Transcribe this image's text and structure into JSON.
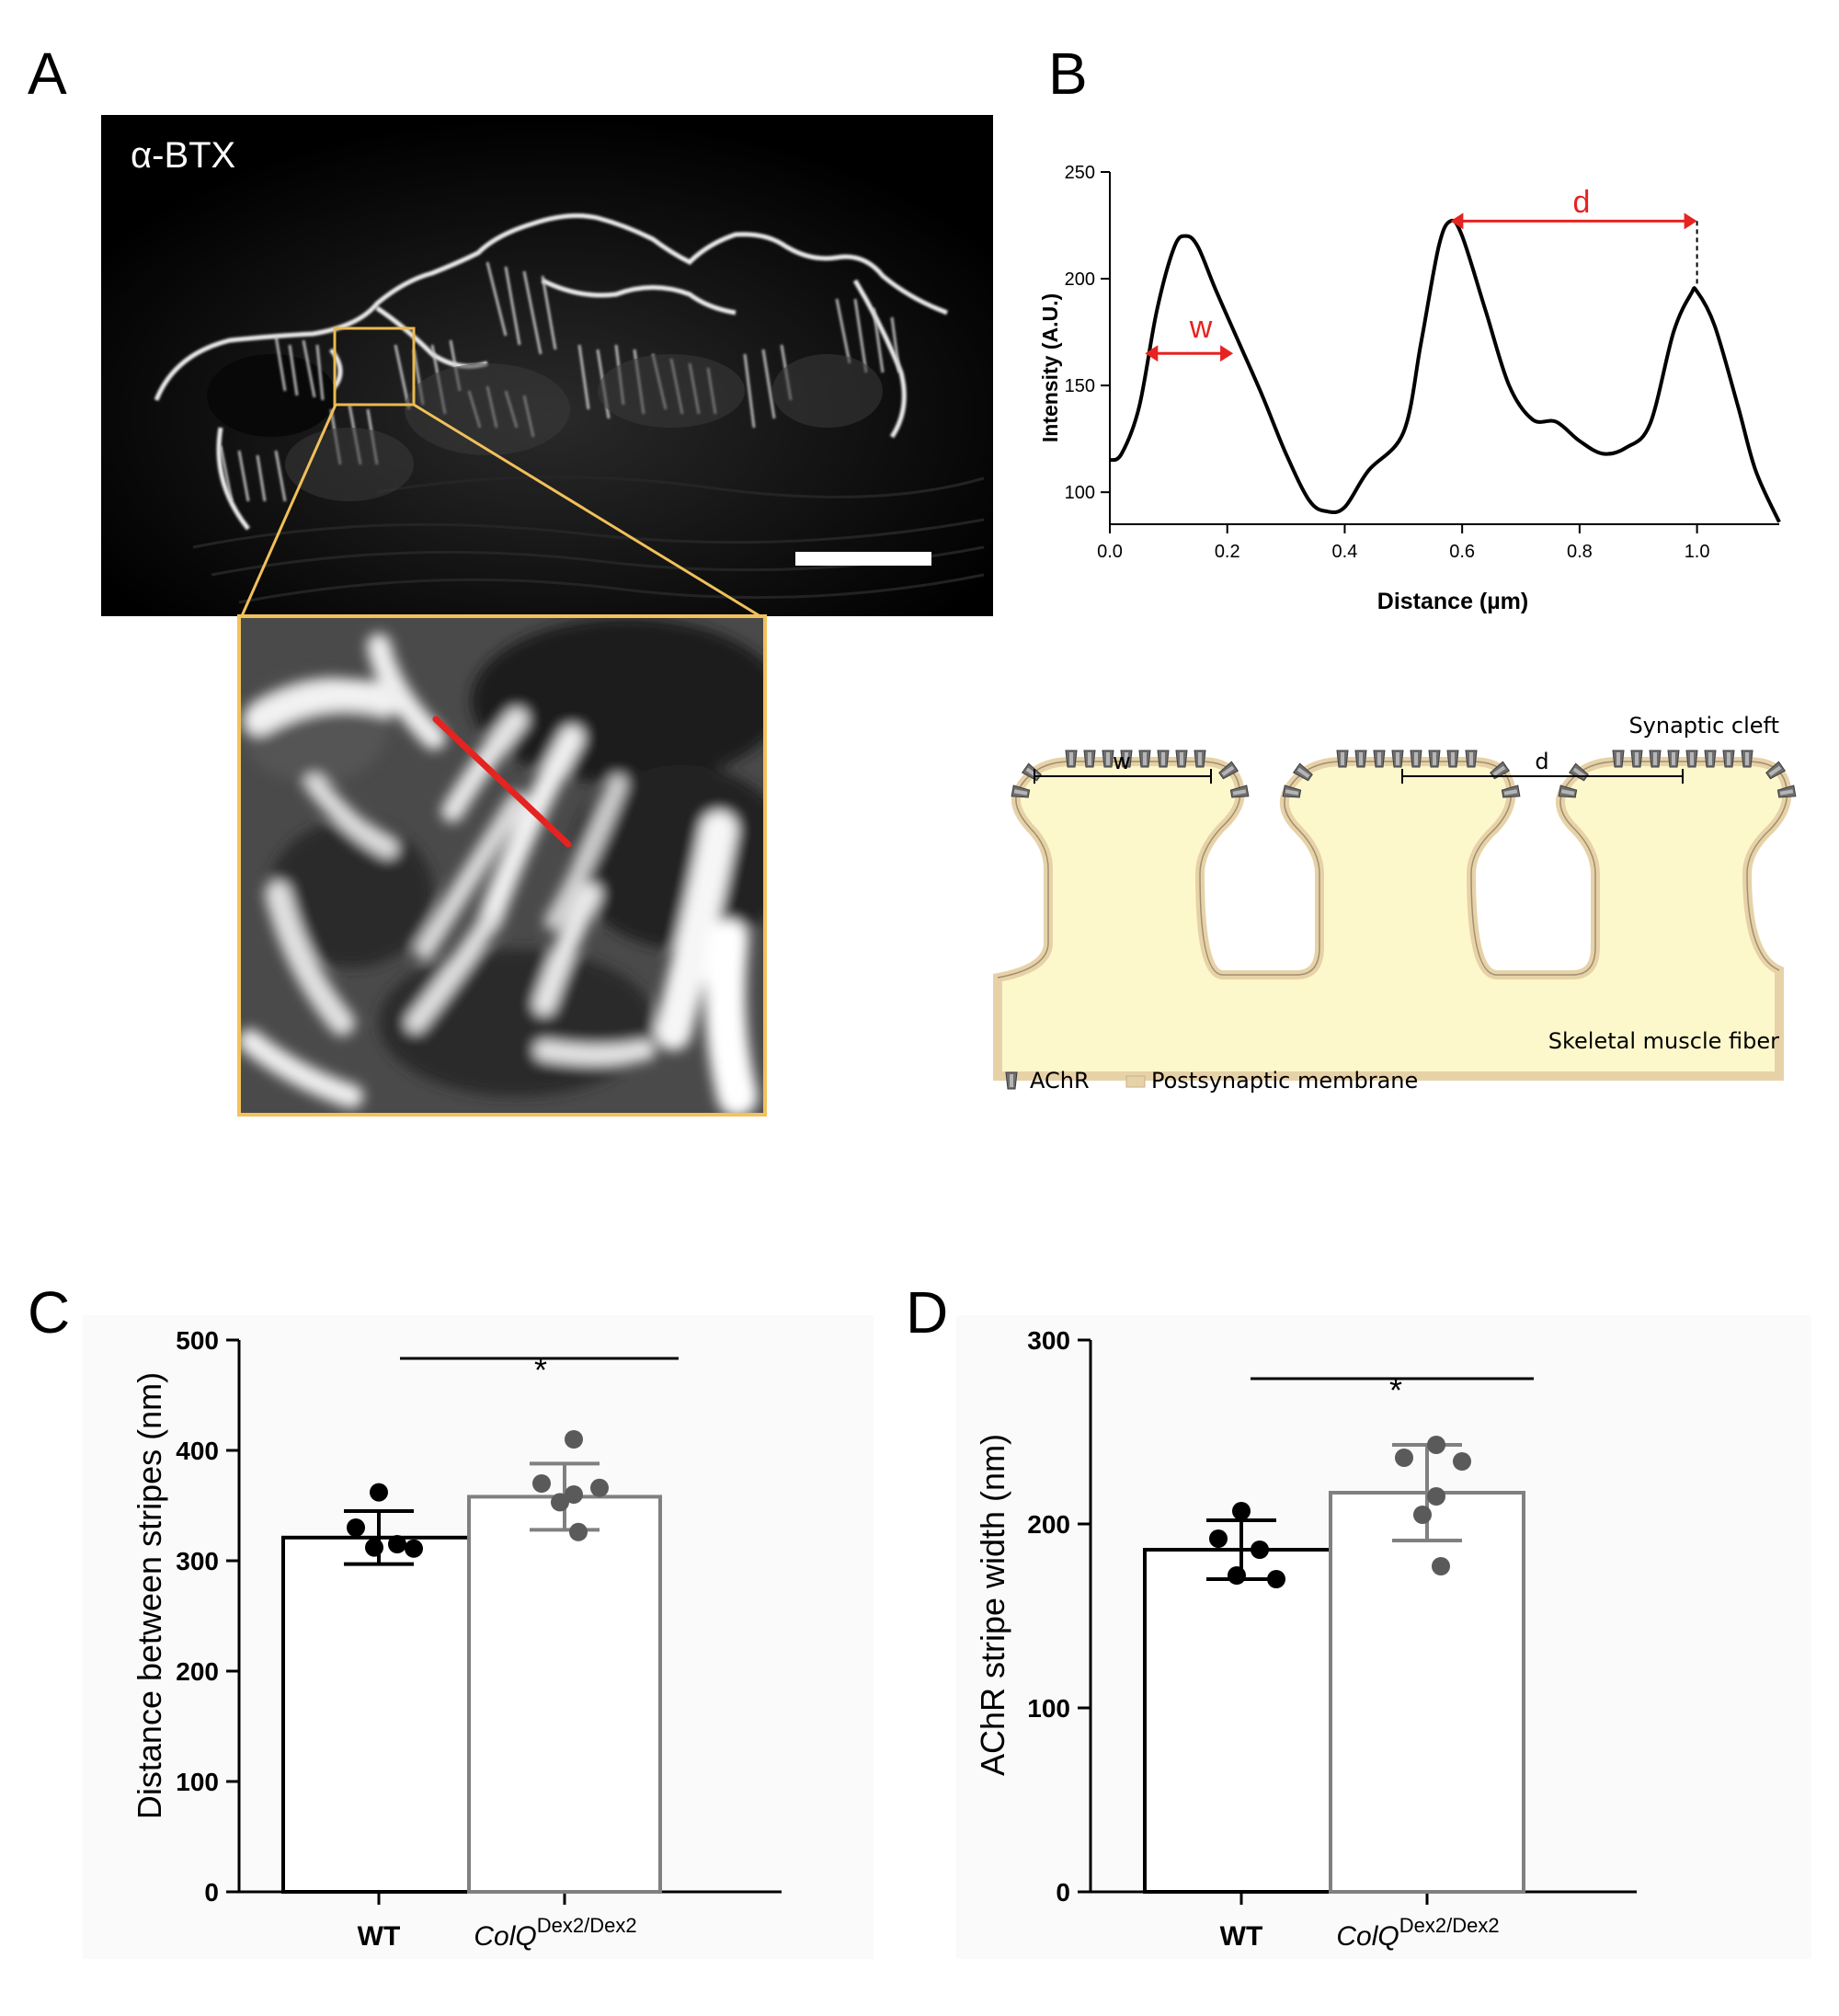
{
  "panels": {
    "a": "A",
    "b": "B",
    "c": "C",
    "d": "D"
  },
  "panel_a": {
    "stain_label": "α-BTX"
  },
  "profile": {
    "ylabel": "Intensity (A.U.)",
    "xlabel": "Distance (µm)",
    "yticks": [
      100,
      150,
      200,
      250
    ],
    "xticks": [
      "0.0",
      "0.2",
      "0.4",
      "0.6",
      "0.8",
      "1.0"
    ],
    "w_label": "w",
    "d_label": "d",
    "curve": [
      [
        0.0,
        115
      ],
      [
        0.02,
        118
      ],
      [
        0.05,
        140
      ],
      [
        0.08,
        185
      ],
      [
        0.11,
        215
      ],
      [
        0.13,
        220
      ],
      [
        0.15,
        215
      ],
      [
        0.18,
        195
      ],
      [
        0.22,
        170
      ],
      [
        0.26,
        145
      ],
      [
        0.3,
        118
      ],
      [
        0.34,
        96
      ],
      [
        0.37,
        91
      ],
      [
        0.4,
        93
      ],
      [
        0.44,
        110
      ],
      [
        0.5,
        128
      ],
      [
        0.53,
        170
      ],
      [
        0.56,
        215
      ],
      [
        0.58,
        227
      ],
      [
        0.6,
        220
      ],
      [
        0.64,
        185
      ],
      [
        0.68,
        150
      ],
      [
        0.72,
        134
      ],
      [
        0.76,
        133
      ],
      [
        0.8,
        124
      ],
      [
        0.84,
        118
      ],
      [
        0.88,
        121
      ],
      [
        0.92,
        132
      ],
      [
        0.96,
        175
      ],
      [
        0.99,
        193
      ],
      [
        1.0,
        194
      ],
      [
        1.03,
        178
      ],
      [
        1.07,
        140
      ],
      [
        1.1,
        110
      ],
      [
        1.14,
        86
      ]
    ]
  },
  "diagram": {
    "synaptic_cleft": "Synaptic cleft",
    "skeletal_muscle_fiber": "Skeletal muscle fiber",
    "w": "w",
    "d": "d",
    "legend_achr": "AChR",
    "legend_membrane": "Postsynaptic membrane",
    "colors": {
      "fiber": "#fdf8cc",
      "membrane": "#e7d2a8",
      "membrane_edge": "#8c7a5c",
      "receptor": "#707070"
    }
  },
  "chart_data": [
    {
      "type": "bar",
      "panel": "C",
      "ylabel": "Distance between stripes (nm)",
      "ylim": [
        0,
        500
      ],
      "yticks": [
        0,
        100,
        200,
        300,
        400,
        500
      ],
      "categories": [
        "WT",
        "ColQ"
      ],
      "category_superscripts": [
        "",
        "Dex2/Dex2"
      ],
      "values": [
        321,
        358
      ],
      "sd": [
        24,
        30
      ],
      "points": [
        [
          362,
          330,
          315,
          312,
          311
        ],
        [
          410,
          370,
          366,
          360,
          353,
          326
        ]
      ],
      "significance": "*",
      "bar_colors": [
        "#000000",
        "#808080"
      ],
      "point_colors": [
        "#000000",
        "#5a5a5a"
      ]
    },
    {
      "type": "bar",
      "panel": "D",
      "ylabel": "AChR stripe width (nm)",
      "ylim": [
        0,
        300
      ],
      "yticks": [
        0,
        100,
        200,
        300
      ],
      "categories": [
        "WT",
        "ColQ"
      ],
      "category_superscripts": [
        "",
        "Dex2/Dex2"
      ],
      "values": [
        186,
        217
      ],
      "sd": [
        16,
        26
      ],
      "points": [
        [
          207,
          192,
          186,
          172,
          170
        ],
        [
          243,
          236,
          234,
          215,
          205,
          177
        ]
      ],
      "significance": "*",
      "bar_colors": [
        "#000000",
        "#808080"
      ],
      "point_colors": [
        "#000000",
        "#5a5a5a"
      ]
    }
  ]
}
